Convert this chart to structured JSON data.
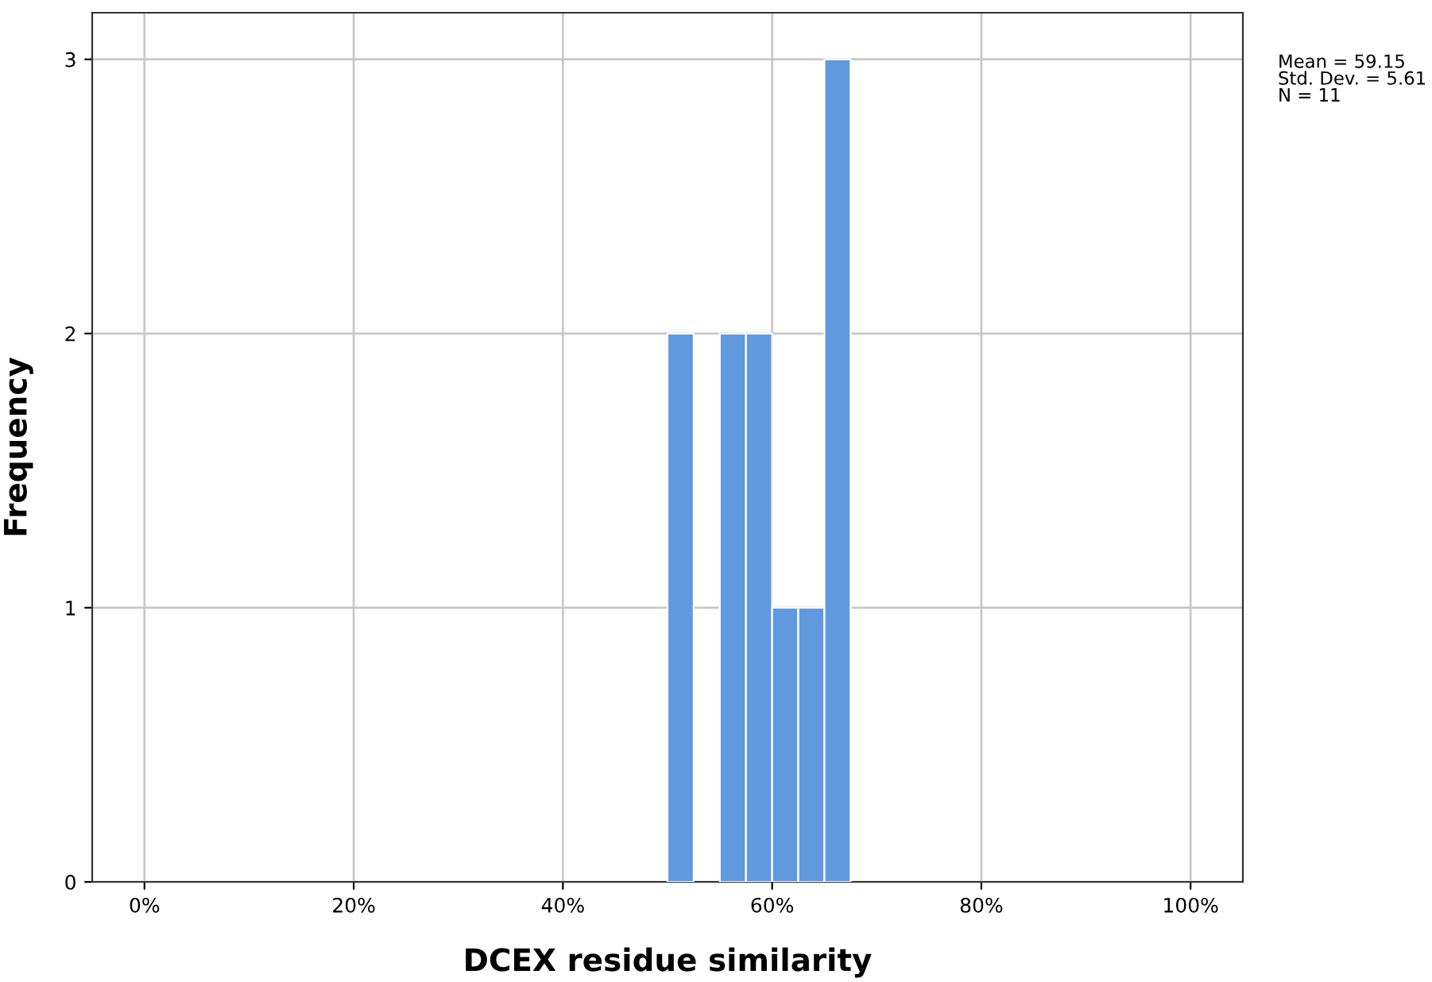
{
  "chart_data": {
    "type": "histogram",
    "xlabel": "DCEX residue similarity",
    "ylabel": "Frequency",
    "bins": [
      50,
      52.5,
      55,
      57.5,
      60,
      62.5,
      65,
      67.5
    ],
    "values": [
      2,
      0,
      2,
      2,
      1,
      1,
      3
    ],
    "color": "#6199df",
    "xlim": [
      -5,
      105
    ],
    "xticks": [
      {
        "value": 0,
        "label": "0%"
      },
      {
        "value": 20,
        "label": "20%"
      },
      {
        "value": 40,
        "label": "40%"
      },
      {
        "value": 60,
        "label": "60%"
      },
      {
        "value": 80,
        "label": "80%"
      },
      {
        "value": 100,
        "label": "100%"
      }
    ],
    "ylim": [
      0,
      3.17
    ],
    "yticks": [
      0,
      1,
      2,
      3
    ],
    "grid": true,
    "legend": false,
    "annotations": [
      "Mean = 59.15\nStd. Dev. = 5.61\nN = 11"
    ]
  }
}
